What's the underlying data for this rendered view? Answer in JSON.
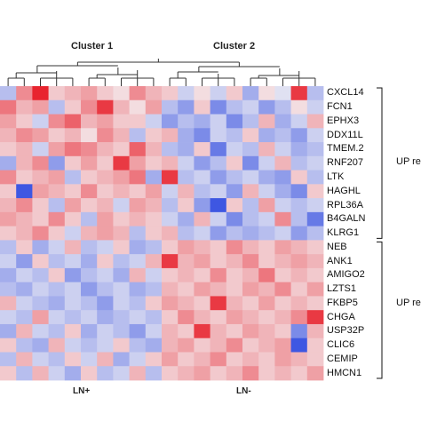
{
  "chart_data": {
    "type": "heatmap",
    "cluster_labels": [
      "Cluster 1",
      "Cluster 2"
    ],
    "rows": [
      "CXCL14",
      "FCN1",
      "EPHX3",
      "DDX11L",
      "TMEM.2",
      "RNF207",
      "LTK",
      "HAGHL",
      "RPL36A",
      "B4GALN",
      "KLRG1",
      "NEB",
      "ANK1",
      "AMIGO2",
      "LZTS1",
      "FKBP5",
      "CHGA",
      "USP32P",
      "CLIC6",
      "CEMIP",
      "HMCN1"
    ],
    "group_labels": [
      "UP re",
      "UP re"
    ],
    "column_groups": [
      "LN+",
      "LN-"
    ],
    "n_columns": 20,
    "color_scale": {
      "low": "#2a46e0",
      "mid": "#f4f2f4",
      "high": "#e8242f"
    },
    "values": [
      [
        -0.3,
        0.5,
        1.0,
        0.2,
        0.3,
        0.4,
        0.2,
        0.1,
        0.5,
        0.3,
        0.2,
        -0.2,
        0.1,
        -0.2,
        0.2,
        -0.4,
        0.1,
        -0.1,
        0.9,
        -0.3
      ],
      [
        0.6,
        0.3,
        0.4,
        -0.3,
        0.2,
        0.5,
        0.9,
        0.3,
        0.1,
        0.4,
        -0.3,
        -0.5,
        0.2,
        -0.6,
        -0.3,
        -0.2,
        -0.5,
        -0.3,
        0.1,
        -0.2
      ],
      [
        0.4,
        0.2,
        -0.2,
        0.5,
        0.7,
        0.3,
        0.4,
        0.2,
        0.2,
        -0.2,
        -0.5,
        -0.3,
        -0.4,
        -0.2,
        -0.6,
        -0.3,
        0.3,
        -0.4,
        -0.2,
        0.3
      ],
      [
        0.3,
        0.5,
        0.4,
        0.2,
        0.3,
        0.1,
        0.5,
        0.3,
        -0.3,
        0.2,
        0.3,
        -0.4,
        -0.6,
        -0.2,
        -0.3,
        0.2,
        -0.4,
        -0.3,
        -0.5,
        -0.2
      ],
      [
        0.2,
        0.3,
        -0.2,
        0.4,
        0.6,
        0.5,
        0.3,
        0.2,
        0.7,
        0.3,
        -0.3,
        -0.4,
        0.2,
        -0.7,
        -0.2,
        -0.3,
        0.3,
        -0.2,
        -0.4,
        -0.3
      ],
      [
        -0.4,
        0.3,
        0.5,
        -0.5,
        0.2,
        0.4,
        0.2,
        0.9,
        0.4,
        0.2,
        0.3,
        -0.2,
        -0.5,
        -0.3,
        0.2,
        -0.6,
        -0.2,
        0.3,
        -0.3,
        -0.2
      ],
      [
        0.5,
        0.2,
        0.3,
        0.4,
        -0.3,
        0.2,
        0.3,
        0.4,
        0.6,
        -0.4,
        0.9,
        -0.3,
        -0.2,
        -0.5,
        -0.3,
        -0.2,
        -0.4,
        -0.5,
        0.2,
        -0.3
      ],
      [
        0.2,
        -0.9,
        0.4,
        0.3,
        0.2,
        0.5,
        0.2,
        0.3,
        0.2,
        0.4,
        -0.2,
        0.3,
        -0.3,
        -0.2,
        -0.5,
        0.3,
        -0.2,
        -0.4,
        -0.6,
        0.2
      ],
      [
        0.3,
        0.5,
        0.2,
        -0.3,
        0.4,
        0.2,
        0.3,
        -0.2,
        0.4,
        0.3,
        -0.3,
        0.2,
        -0.5,
        -0.9,
        0.2,
        -0.3,
        0.4,
        -0.2,
        -0.3,
        -0.2
      ],
      [
        0.4,
        0.3,
        0.2,
        0.5,
        0.2,
        -0.3,
        0.4,
        0.2,
        0.3,
        0.2,
        -0.2,
        -0.4,
        0.3,
        -0.2,
        -0.6,
        -0.3,
        -0.2,
        0.5,
        -0.3,
        -0.7
      ],
      [
        0.2,
        0.3,
        0.5,
        0.2,
        -0.2,
        0.3,
        0.4,
        0.3,
        -0.3,
        0.2,
        0.3,
        -0.3,
        -0.2,
        -0.5,
        -0.3,
        -0.4,
        -0.3,
        -0.2,
        -0.5,
        -0.3
      ],
      [
        -0.3,
        0.2,
        -0.4,
        -0.2,
        0.3,
        -0.3,
        -0.2,
        0.2,
        -0.4,
        -0.3,
        0.2,
        0.4,
        0.3,
        0.2,
        0.5,
        0.3,
        0.2,
        0.4,
        0.3,
        0.2
      ],
      [
        -0.2,
        -0.5,
        0.2,
        -0.3,
        -0.2,
        -0.4,
        0.2,
        -0.3,
        -0.2,
        0.3,
        0.9,
        0.3,
        0.4,
        0.2,
        0.3,
        0.5,
        0.2,
        0.3,
        0.4,
        0.3
      ],
      [
        -0.4,
        -0.2,
        -0.3,
        0.2,
        -0.5,
        -0.3,
        -0.2,
        -0.4,
        0.3,
        -0.2,
        0.2,
        0.3,
        0.2,
        0.5,
        0.2,
        0.3,
        0.6,
        0.2,
        0.3,
        0.2
      ],
      [
        -0.3,
        -0.4,
        -0.2,
        -0.3,
        -0.2,
        -0.5,
        -0.3,
        -0.2,
        -0.4,
        -0.3,
        0.3,
        0.2,
        0.4,
        0.3,
        0.2,
        0.4,
        0.3,
        0.5,
        0.2,
        0.4
      ],
      [
        0.3,
        -0.2,
        -0.3,
        -0.4,
        -0.2,
        -0.3,
        -0.5,
        -0.2,
        -0.3,
        0.2,
        0.4,
        0.3,
        0.2,
        0.9,
        0.3,
        0.2,
        0.4,
        0.2,
        0.3,
        0.2
      ],
      [
        -0.2,
        -0.3,
        0.4,
        -0.2,
        -0.3,
        -0.2,
        -0.4,
        -0.3,
        -0.2,
        -0.3,
        0.2,
        0.5,
        0.3,
        0.2,
        0.4,
        0.3,
        0.2,
        0.3,
        0.5,
        0.9
      ],
      [
        -0.4,
        0.3,
        -0.2,
        -0.3,
        0.2,
        -0.4,
        -0.2,
        -0.3,
        -0.5,
        -0.2,
        0.3,
        0.2,
        0.9,
        0.3,
        0.2,
        0.4,
        0.3,
        0.2,
        -0.6,
        0.3
      ],
      [
        0.2,
        -0.3,
        -0.4,
        0.3,
        -0.2,
        -0.3,
        -0.2,
        0.2,
        -0.3,
        -0.4,
        0.3,
        0.4,
        0.2,
        0.3,
        0.5,
        0.2,
        0.3,
        0.4,
        -0.9,
        0.2
      ],
      [
        -0.3,
        0.3,
        -0.2,
        -0.3,
        0.2,
        -0.2,
        0.3,
        -0.4,
        -0.2,
        0.2,
        0.4,
        0.2,
        0.3,
        0.5,
        0.2,
        0.3,
        0.2,
        0.4,
        0.3,
        0.2
      ],
      [
        0.2,
        -0.3,
        0.3,
        -0.2,
        -0.4,
        0.2,
        -0.3,
        -0.2,
        0.3,
        -0.3,
        0.2,
        0.3,
        0.4,
        0.2,
        0.3,
        0.5,
        0.2,
        0.3,
        0.2,
        0.4
      ]
    ]
  }
}
